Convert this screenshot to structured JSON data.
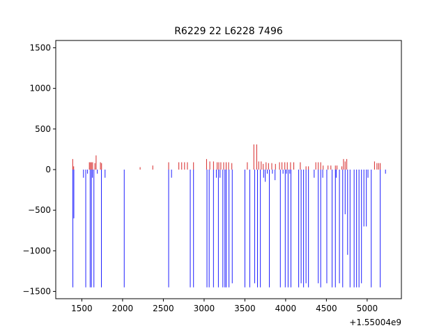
{
  "chart_data": {
    "type": "bar",
    "title": "R6229 22 L6228 7496",
    "xlabel": "",
    "ylabel": "",
    "x_offset_label": "+1.55004e9",
    "xlim": [
      1180,
      5420
    ],
    "ylim": [
      -1590,
      1590
    ],
    "xticks": [
      1500,
      2000,
      2500,
      3000,
      3500,
      4000,
      4500,
      5000
    ],
    "yticks": [
      -1500,
      -1000,
      -500,
      0,
      500,
      1000,
      1500
    ],
    "grid": false,
    "colors": {
      "positive": "#d62728",
      "negative": "#1f1fff"
    },
    "series": [
      {
        "name": "",
        "color": "#d62728",
        "points": [
          [
            1388,
            130
          ],
          [
            1400,
            40
          ],
          [
            1592,
            90
          ],
          [
            1605,
            90
          ],
          [
            1618,
            90
          ],
          [
            1632,
            90
          ],
          [
            1660,
            80
          ],
          [
            1675,
            175
          ],
          [
            1728,
            90
          ],
          [
            1742,
            80
          ],
          [
            2215,
            30
          ],
          [
            2370,
            50
          ],
          [
            2565,
            90
          ],
          [
            2690,
            90
          ],
          [
            2725,
            90
          ],
          [
            2760,
            90
          ],
          [
            2795,
            90
          ],
          [
            2870,
            90
          ],
          [
            3030,
            130
          ],
          [
            3070,
            100
          ],
          [
            3115,
            100
          ],
          [
            3160,
            90
          ],
          [
            3180,
            90
          ],
          [
            3205,
            90
          ],
          [
            3240,
            90
          ],
          [
            3270,
            90
          ],
          [
            3300,
            90
          ],
          [
            3340,
            80
          ],
          [
            3530,
            90
          ],
          [
            3610,
            310
          ],
          [
            3645,
            310
          ],
          [
            3670,
            100
          ],
          [
            3700,
            100
          ],
          [
            3725,
            70
          ],
          [
            3760,
            90
          ],
          [
            3790,
            80
          ],
          [
            3830,
            80
          ],
          [
            3875,
            70
          ],
          [
            3925,
            90
          ],
          [
            3955,
            90
          ],
          [
            3990,
            90
          ],
          [
            4020,
            90
          ],
          [
            4060,
            90
          ],
          [
            4100,
            90
          ],
          [
            4180,
            90
          ],
          [
            4250,
            40
          ],
          [
            4280,
            40
          ],
          [
            4370,
            90
          ],
          [
            4400,
            90
          ],
          [
            4430,
            90
          ],
          [
            4460,
            50
          ],
          [
            4520,
            50
          ],
          [
            4555,
            50
          ],
          [
            4610,
            50
          ],
          [
            4630,
            50
          ],
          [
            4690,
            40
          ],
          [
            4710,
            130
          ],
          [
            4730,
            100
          ],
          [
            4750,
            130
          ],
          [
            5090,
            100
          ],
          [
            5120,
            80
          ],
          [
            5140,
            80
          ],
          [
            5160,
            80
          ]
        ]
      },
      {
        "name": "",
        "color": "#1f1fff",
        "points": [
          [
            1390,
            -1450
          ],
          [
            1402,
            -600
          ],
          [
            1520,
            -100
          ],
          [
            1548,
            -1450
          ],
          [
            1570,
            -50
          ],
          [
            1602,
            -1450
          ],
          [
            1618,
            -1450
          ],
          [
            1630,
            -100
          ],
          [
            1648,
            -1450
          ],
          [
            1690,
            -50
          ],
          [
            1740,
            -1450
          ],
          [
            1785,
            -100
          ],
          [
            2020,
            -1450
          ],
          [
            2565,
            -1450
          ],
          [
            2600,
            -100
          ],
          [
            2830,
            -1450
          ],
          [
            2870,
            -1450
          ],
          [
            3035,
            -1450
          ],
          [
            3062,
            -1450
          ],
          [
            3115,
            -1450
          ],
          [
            3150,
            -100
          ],
          [
            3175,
            -1450
          ],
          [
            3195,
            -100
          ],
          [
            3230,
            -1450
          ],
          [
            3255,
            -1450
          ],
          [
            3270,
            -1450
          ],
          [
            3305,
            -1450
          ],
          [
            3345,
            -1400
          ],
          [
            3500,
            -1450
          ],
          [
            3560,
            -1450
          ],
          [
            3620,
            -1400
          ],
          [
            3655,
            -1450
          ],
          [
            3690,
            -1450
          ],
          [
            3730,
            -100
          ],
          [
            3750,
            -150
          ],
          [
            3775,
            -50
          ],
          [
            3800,
            -1450
          ],
          [
            3838,
            -50
          ],
          [
            3870,
            -130
          ],
          [
            3935,
            -1450
          ],
          [
            3968,
            -50
          ],
          [
            3995,
            -1450
          ],
          [
            4010,
            -50
          ],
          [
            4030,
            -1450
          ],
          [
            4050,
            -50
          ],
          [
            4065,
            -1450
          ],
          [
            4160,
            -1450
          ],
          [
            4190,
            -1400
          ],
          [
            4220,
            -1450
          ],
          [
            4250,
            -1400
          ],
          [
            4280,
            -1450
          ],
          [
            4350,
            -100
          ],
          [
            4400,
            -1400
          ],
          [
            4430,
            -1450
          ],
          [
            4455,
            -100
          ],
          [
            4505,
            -1400
          ],
          [
            4570,
            -1450
          ],
          [
            4610,
            -1450
          ],
          [
            4620,
            -100
          ],
          [
            4660,
            -1400
          ],
          [
            4700,
            -1450
          ],
          [
            4730,
            -550
          ],
          [
            4760,
            -1050
          ],
          [
            4790,
            -1450
          ],
          [
            4840,
            -1450
          ],
          [
            4870,
            -1450
          ],
          [
            4900,
            -1450
          ],
          [
            4930,
            -1400
          ],
          [
            4960,
            -700
          ],
          [
            4990,
            -700
          ],
          [
            5010,
            -100
          ],
          [
            5050,
            -1450
          ],
          [
            5160,
            -1450
          ],
          [
            5225,
            -50
          ]
        ]
      }
    ]
  }
}
